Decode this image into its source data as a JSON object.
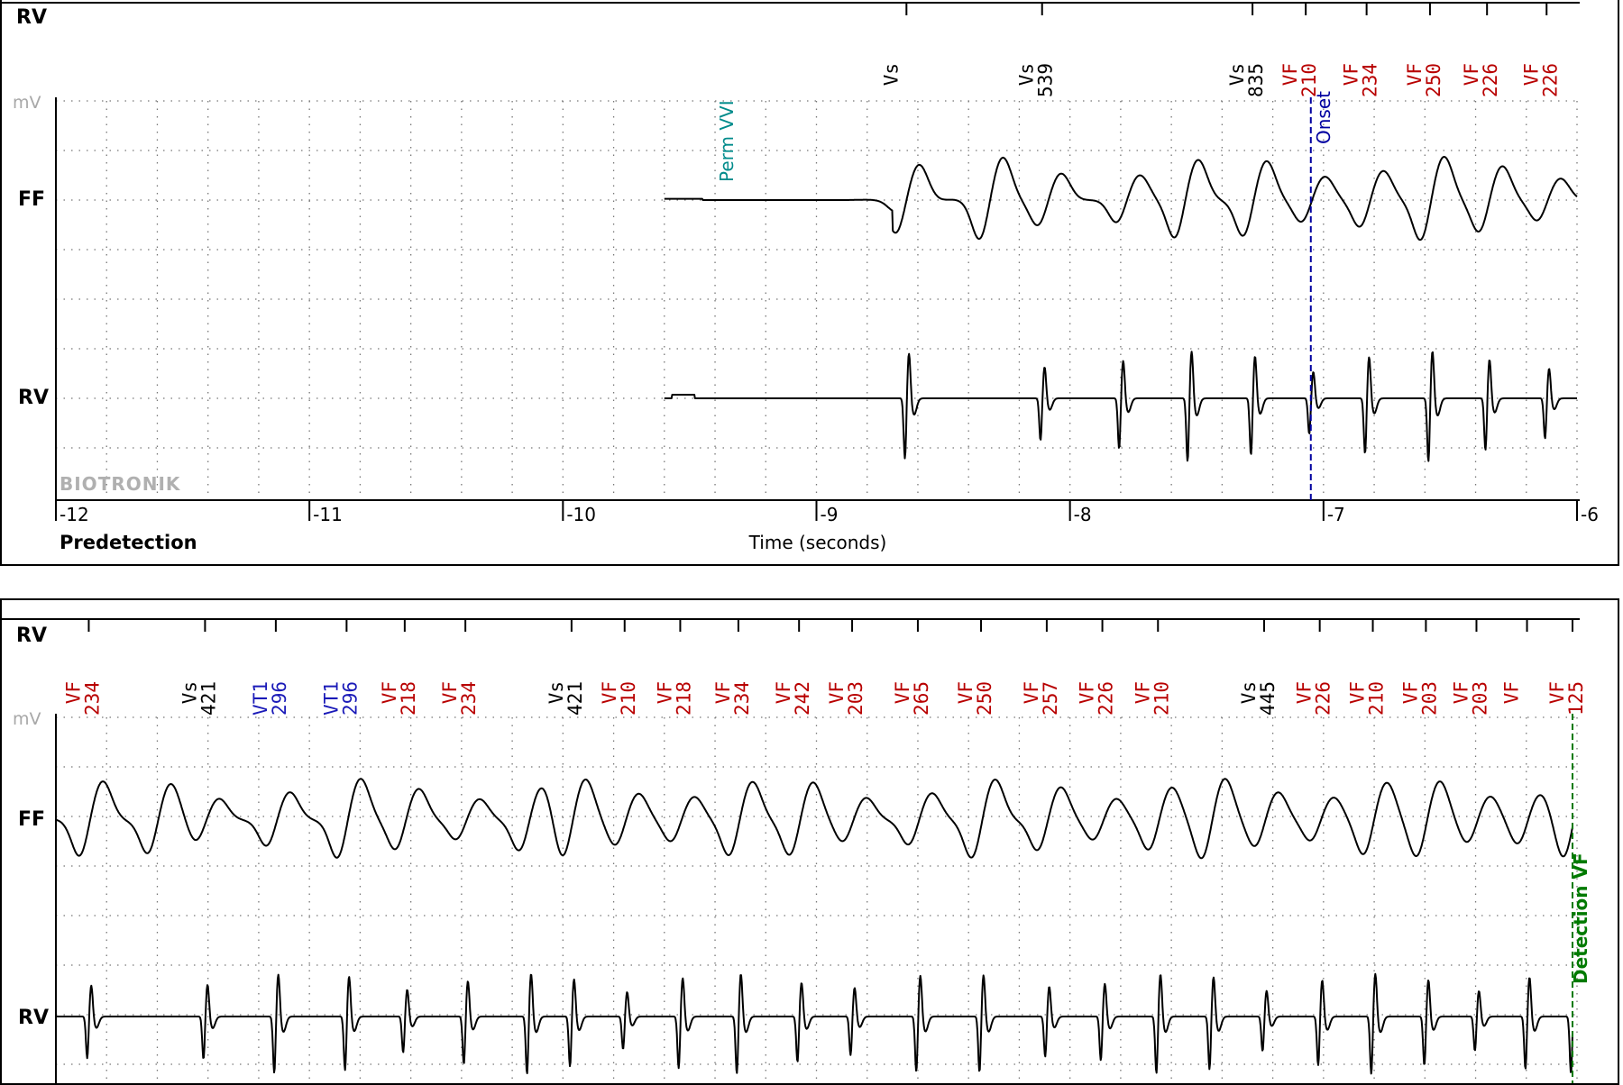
{
  "colors": {
    "vs": "#000000",
    "vf": "#b80000",
    "vt1": "#1a1ab8",
    "perm": "#008b8b",
    "onset": "#0000a0",
    "detection": "#007a00",
    "brand": "#b0b0b0"
  },
  "top_panel": {
    "marker_row_label": "RV",
    "mv_label": "mV",
    "channel_ff": "FF",
    "channel_rv": "RV",
    "brand": "BIOTRONIK",
    "section_label": "Predetection",
    "xlabel": "Time (seconds)",
    "perm_annotation": "Perm VVI",
    "onset_label": "Onset",
    "markers": [
      {
        "t": -8.645,
        "type": "Vs",
        "value": ""
      },
      {
        "t": -8.11,
        "type": "Vs",
        "value": "539"
      },
      {
        "t": -7.28,
        "type": "Vs",
        "value": "835"
      },
      {
        "t": -7.07,
        "type": "VF",
        "value": "210"
      },
      {
        "t": -6.83,
        "type": "VF",
        "value": "234"
      },
      {
        "t": -6.58,
        "type": "VF",
        "value": "250"
      },
      {
        "t": -6.355,
        "type": "VF",
        "value": "226"
      },
      {
        "t": -6.12,
        "type": "VF",
        "value": "226"
      }
    ]
  },
  "bottom_panel": {
    "marker_row_label": "RV",
    "mv_label": "mV",
    "channel_ff": "FF",
    "channel_rv": "RV",
    "detection_label": "Detection VF",
    "markers": [
      {
        "t": -5.87,
        "type": "VF",
        "value": "234"
      },
      {
        "t": -5.41,
        "type": "Vs",
        "value": "421"
      },
      {
        "t": -5.13,
        "type": "VT1",
        "value": "296"
      },
      {
        "t": -4.85,
        "type": "VT1",
        "value": "296"
      },
      {
        "t": -4.62,
        "type": "VF",
        "value": "218"
      },
      {
        "t": -4.38,
        "type": "VF",
        "value": "234"
      },
      {
        "t": -3.96,
        "type": "Vs",
        "value": "421"
      },
      {
        "t": -3.75,
        "type": "VF",
        "value": "210"
      },
      {
        "t": -3.53,
        "type": "VF",
        "value": "218"
      },
      {
        "t": -3.3,
        "type": "VF",
        "value": "234"
      },
      {
        "t": -3.06,
        "type": "VF",
        "value": "242"
      },
      {
        "t": -2.85,
        "type": "VF",
        "value": "203"
      },
      {
        "t": -2.59,
        "type": "VF",
        "value": "265"
      },
      {
        "t": -2.34,
        "type": "VF",
        "value": "250"
      },
      {
        "t": -2.08,
        "type": "VF",
        "value": "257"
      },
      {
        "t": -1.86,
        "type": "VF",
        "value": "226"
      },
      {
        "t": -1.64,
        "type": "VF",
        "value": "210"
      },
      {
        "t": -1.22,
        "type": "Vs",
        "value": "445"
      },
      {
        "t": -1.0,
        "type": "VF",
        "value": "226"
      },
      {
        "t": -0.79,
        "type": "VF",
        "value": "210"
      },
      {
        "t": -0.58,
        "type": "VF",
        "value": "203"
      },
      {
        "t": -0.38,
        "type": "VF",
        "value": "203"
      },
      {
        "t": -0.18,
        "type": "VF",
        "value": ""
      },
      {
        "t": 0.0,
        "type": "VF",
        "value": "125"
      }
    ]
  },
  "chart_data": [
    {
      "type": "line",
      "x_unit": "seconds",
      "xlim": [
        -12,
        -6
      ],
      "x_ticks": [
        -12,
        -11,
        -10,
        -9,
        -8,
        -7,
        -6
      ],
      "x_tick_labels": [
        "-12",
        "-11",
        "-10",
        "-9",
        "-8",
        "-7",
        "-6"
      ],
      "xlabel": "Time (seconds)",
      "series": [
        {
          "name": "FF"
        },
        {
          "name": "RV"
        }
      ],
      "signal_start": -9.6,
      "perm_vvi_time": -9.35,
      "onset_time": -7.05,
      "ff_beats": [
        -9.6,
        -9.45,
        -9.2,
        -8.65,
        -8.32,
        -8.09,
        -7.78,
        -7.55,
        -7.28,
        -7.05,
        -6.82,
        -6.58,
        -6.35,
        -6.12
      ],
      "rv_beats": [
        -8.645,
        -8.11,
        -7.8,
        -7.53,
        -7.28,
        -7.05,
        -6.83,
        -6.58,
        -6.355,
        -6.12
      ]
    },
    {
      "type": "line",
      "x_unit": "seconds",
      "xlim": [
        -6,
        0
      ],
      "series": [
        {
          "name": "FF"
        },
        {
          "name": "RV"
        }
      ],
      "detection_time": 0.0,
      "ff_beats": [
        -5.87,
        -5.6,
        -5.41,
        -5.13,
        -4.85,
        -4.62,
        -4.38,
        -4.13,
        -3.96,
        -3.75,
        -3.53,
        -3.3,
        -3.06,
        -2.85,
        -2.59,
        -2.34,
        -2.08,
        -1.86,
        -1.64,
        -1.43,
        -1.22,
        -1.0,
        -0.79,
        -0.58,
        -0.38,
        -0.18,
        0.0
      ],
      "rv_beats": [
        -5.87,
        -5.41,
        -5.13,
        -4.85,
        -4.62,
        -4.38,
        -4.13,
        -3.96,
        -3.75,
        -3.53,
        -3.3,
        -3.06,
        -2.85,
        -2.59,
        -2.34,
        -2.08,
        -1.86,
        -1.64,
        -1.43,
        -1.22,
        -1.0,
        -0.79,
        -0.58,
        -0.38,
        -0.18,
        0.0
      ]
    }
  ]
}
